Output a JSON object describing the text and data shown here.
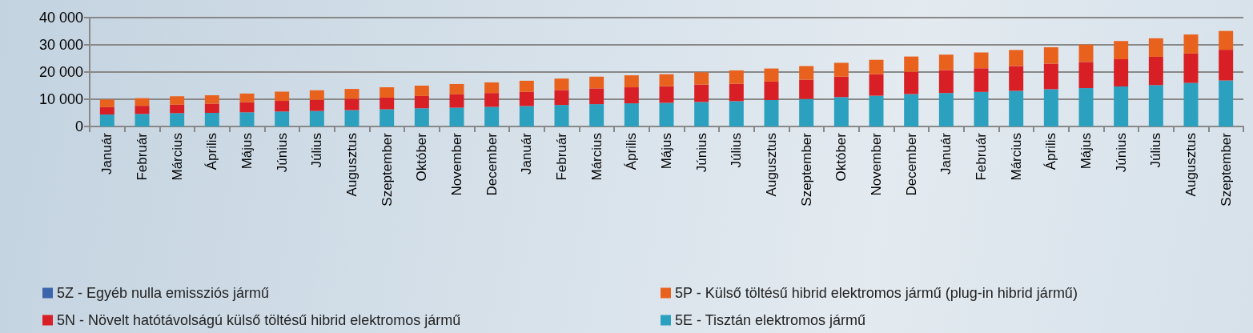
{
  "chart_data": {
    "type": "bar",
    "stacked": true,
    "grid": "y",
    "legend": "bottom",
    "categories": [
      "Január",
      "Február",
      "Március",
      "Április",
      "Május",
      "Június",
      "Július",
      "Augusztus",
      "Szeptember",
      "Október",
      "November",
      "December",
      "Január",
      "Február",
      "Március",
      "Április",
      "Május",
      "Június",
      "Július",
      "Augusztus",
      "Szeptember",
      "Október",
      "November",
      "December",
      "Január",
      "Február",
      "Március",
      "Április",
      "Május",
      "Június",
      "Július",
      "Augusztus",
      "Szeptember"
    ],
    "ylim": [
      0,
      40000
    ],
    "yticks": [
      {
        "value": 0,
        "label": "0"
      },
      {
        "value": 10000,
        "label": "10 000"
      },
      {
        "value": 20000,
        "label": "20 000"
      },
      {
        "value": 30000,
        "label": "30 000"
      },
      {
        "value": 40000,
        "label": "40 000"
      }
    ],
    "series": [
      {
        "name": "5E - Tisztán elektromos jármű",
        "color": "#2ba1bf",
        "values": [
          4400,
          4600,
          4900,
          5000,
          5200,
          5500,
          5700,
          6000,
          6300,
          6700,
          6900,
          7200,
          7500,
          7900,
          8200,
          8500,
          8700,
          9000,
          9300,
          9700,
          10100,
          10800,
          11300,
          11900,
          12300,
          12700,
          13100,
          13700,
          14100,
          14700,
          15200,
          16000,
          16900
        ]
      },
      {
        "name": "5N - Növelt hatótávolságú külső töltésű hibrid elektromos jármű",
        "color": "#d91f26",
        "values": [
          2700,
          3000,
          3100,
          3400,
          3700,
          3900,
          4100,
          4200,
          4300,
          4500,
          4900,
          5100,
          5200,
          5500,
          5800,
          5900,
          6100,
          6400,
          6400,
          6800,
          7100,
          7500,
          7900,
          8200,
          8400,
          8700,
          9100,
          9400,
          9600,
          10000,
          10400,
          10800,
          11300
        ]
      },
      {
        "name": "5P - Külső töltésű hibrid elektromos jármű (plug-in hibrid jármű)",
        "color": "#e9621d",
        "values": [
          2800,
          2800,
          3100,
          3100,
          3200,
          3400,
          3500,
          3600,
          3800,
          3800,
          3800,
          3900,
          4100,
          4200,
          4300,
          4400,
          4400,
          4500,
          4900,
          4800,
          5000,
          5100,
          5300,
          5600,
          5700,
          5800,
          5900,
          6000,
          6400,
          6700,
          6800,
          7000,
          6900
        ]
      },
      {
        "name": "5Z - Egyéb nulla emissziós jármű",
        "color": "#3b64ad",
        "values": [
          0,
          0,
          0,
          0,
          0,
          0,
          0,
          0,
          0,
          0,
          0,
          0,
          0,
          0,
          0,
          0,
          0,
          0,
          0,
          0,
          0,
          0,
          0,
          0,
          0,
          0,
          0,
          0,
          0,
          0,
          0,
          0,
          0
        ]
      }
    ]
  }
}
